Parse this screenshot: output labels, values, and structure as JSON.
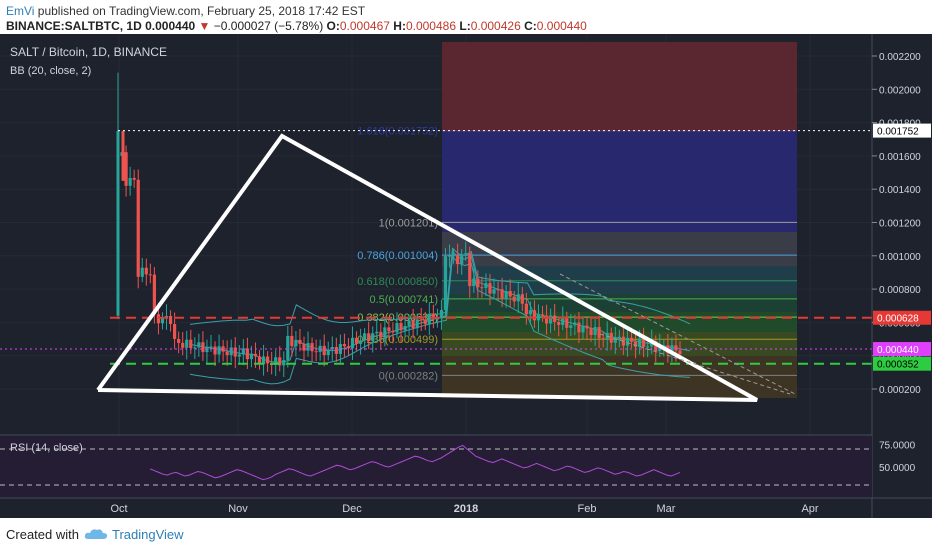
{
  "header": {
    "line1_author": "EmVi",
    "line1_rest": " published on TradingView.com, February 25, 2018 17:42 EST",
    "symbol": "BINANCE:SALTBTC, 1D",
    "price": "0.000440",
    "change": "−0.000027 (−5.78%)",
    "open_label": "O:",
    "open": "0.000467",
    "high_label": "H:",
    "high": "0.000486",
    "low_label": "L:",
    "low": "0.000426",
    "close_label": "C:",
    "close": "0.000440"
  },
  "chart_title": "SALT / Bitcoin, 1D, BINANCE",
  "indicator_label": "BB (20, close, 2)",
  "rsi_label": "RSI (14, close)",
  "footer": {
    "created": "Created with",
    "brand": "TradingView"
  },
  "colors": {
    "up": "#26a69a",
    "down": "#ef5350",
    "wick": "#cfcfcf",
    "bb": "#3aa0a8",
    "rsi": "#b04bd8",
    "bg": "#1e222d",
    "triangle": "#ffffff",
    "support": "#2ecc40",
    "resistance": "#e53935"
  },
  "chart_data": {
    "type": "candlestick",
    "x_tick_labels": [
      "Oct",
      "Nov",
      "Dec",
      "2018",
      "Feb",
      "Mar",
      "Apr"
    ],
    "y_tick_labels": [
      "0.002200",
      "0.002000",
      "0.001800",
      "0.001600",
      "0.001400",
      "0.001200",
      "0.001000",
      "0.000800",
      "0.000600",
      "0.000400",
      "0.000200"
    ],
    "y_ticks": [
      0.0022,
      0.002,
      0.0018,
      0.0016,
      0.0014,
      0.0012,
      0.001,
      0.0008,
      0.0006,
      0.0004,
      0.0002
    ],
    "ylim": [
      0.00012,
      0.00232
    ],
    "price_tags": [
      {
        "label": "0.001752",
        "value": 0.001752,
        "color": "#ffffff",
        "text": "#000000"
      },
      {
        "label": "0.000628",
        "value": 0.000628,
        "color": "#e53935",
        "text": "#ffffff"
      },
      {
        "label": "0.000440",
        "value": 0.00044,
        "color": "#e040fb",
        "text": "#ffffff"
      },
      {
        "label": "0.000352",
        "value": 0.000352,
        "color": "#2ecc40",
        "text": "#000000"
      }
    ],
    "fib_levels": [
      {
        "label": "1.618(0.001752)",
        "value": 0.001752,
        "color": "#2e3a9f"
      },
      {
        "label": "1(0.001201)",
        "value": 0.001201,
        "color": "#9e9e9e"
      },
      {
        "label": "0.786(0.001004)",
        "value": 0.001004,
        "color": "#4aa3df"
      },
      {
        "label": "0.618(0.000850)",
        "value": 0.00085,
        "color": "#2e8b57"
      },
      {
        "label": "0.5(0.000741)",
        "value": 0.000741,
        "color": "#4caf50"
      },
      {
        "label": "0.382(0.000632)",
        "value": 0.000632,
        "color": "#8bc34a"
      },
      {
        "label": "0.236(0.000499)",
        "value": 0.000499,
        "color": "#9e9d24"
      },
      {
        "label": "0(0.000282)",
        "value": 0.000282,
        "color": "#7f7f7f"
      }
    ],
    "horizontal_lines": [
      {
        "name": "resistance",
        "value": 0.000628,
        "style": "dashed",
        "color": "#e53935"
      },
      {
        "name": "support",
        "value": 0.000352,
        "style": "dashed",
        "color": "#2ecc40"
      },
      {
        "name": "fib-top",
        "value": 0.001752,
        "style": "dotted",
        "color": "#ffffff"
      }
    ],
    "rsi": {
      "y_tick_labels": [
        "75.0000",
        "50.0000"
      ],
      "levels": [
        70,
        30
      ],
      "ylim": [
        20,
        80
      ],
      "values": [
        48,
        46,
        44,
        42,
        41,
        43,
        44,
        42,
        40,
        41,
        43,
        45,
        44,
        42,
        40,
        38,
        39,
        41,
        43,
        45,
        47,
        46,
        44,
        42,
        40,
        38,
        36,
        37,
        39,
        42,
        44,
        46,
        48,
        47,
        45,
        43,
        41,
        40,
        42,
        44,
        46,
        48,
        50,
        52,
        51,
        49,
        47,
        48,
        50,
        52,
        54,
        56,
        55,
        53,
        51,
        50,
        52,
        54,
        56,
        58,
        60,
        62,
        61,
        59,
        57,
        56,
        58,
        60,
        63,
        66,
        69,
        72,
        74,
        70,
        66,
        62,
        60,
        58,
        56,
        55,
        57,
        59,
        57,
        55,
        53,
        51,
        49,
        50,
        52,
        54,
        52,
        50,
        48,
        46,
        47,
        49,
        51,
        50,
        48,
        46,
        44,
        45,
        47,
        49,
        48,
        46,
        44,
        42,
        43,
        45,
        44,
        42,
        40,
        41,
        43,
        45,
        47,
        45,
        43,
        41,
        40,
        42,
        44
      ]
    }
  }
}
